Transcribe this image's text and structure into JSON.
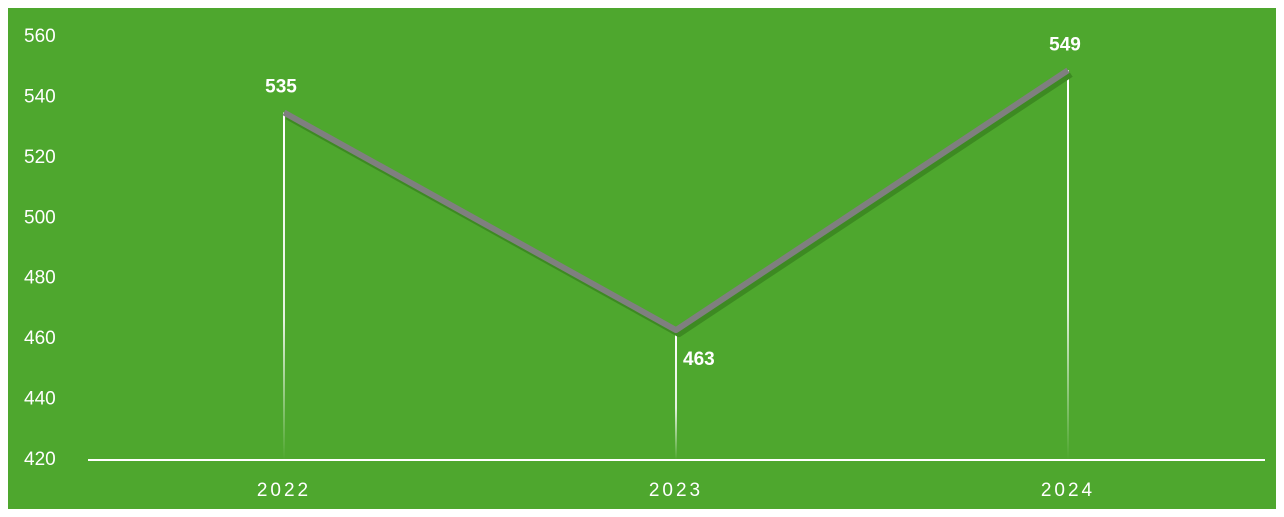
{
  "chart_data": {
    "type": "line",
    "categories": [
      "2022",
      "2023",
      "2024"
    ],
    "values": [
      535,
      463,
      549
    ],
    "color": "#7f7f7f",
    "background": "#4ea72e",
    "ylim": [
      420,
      560
    ],
    "yticks": [
      420,
      440,
      460,
      480,
      500,
      520,
      540,
      560
    ],
    "grid": false
  }
}
